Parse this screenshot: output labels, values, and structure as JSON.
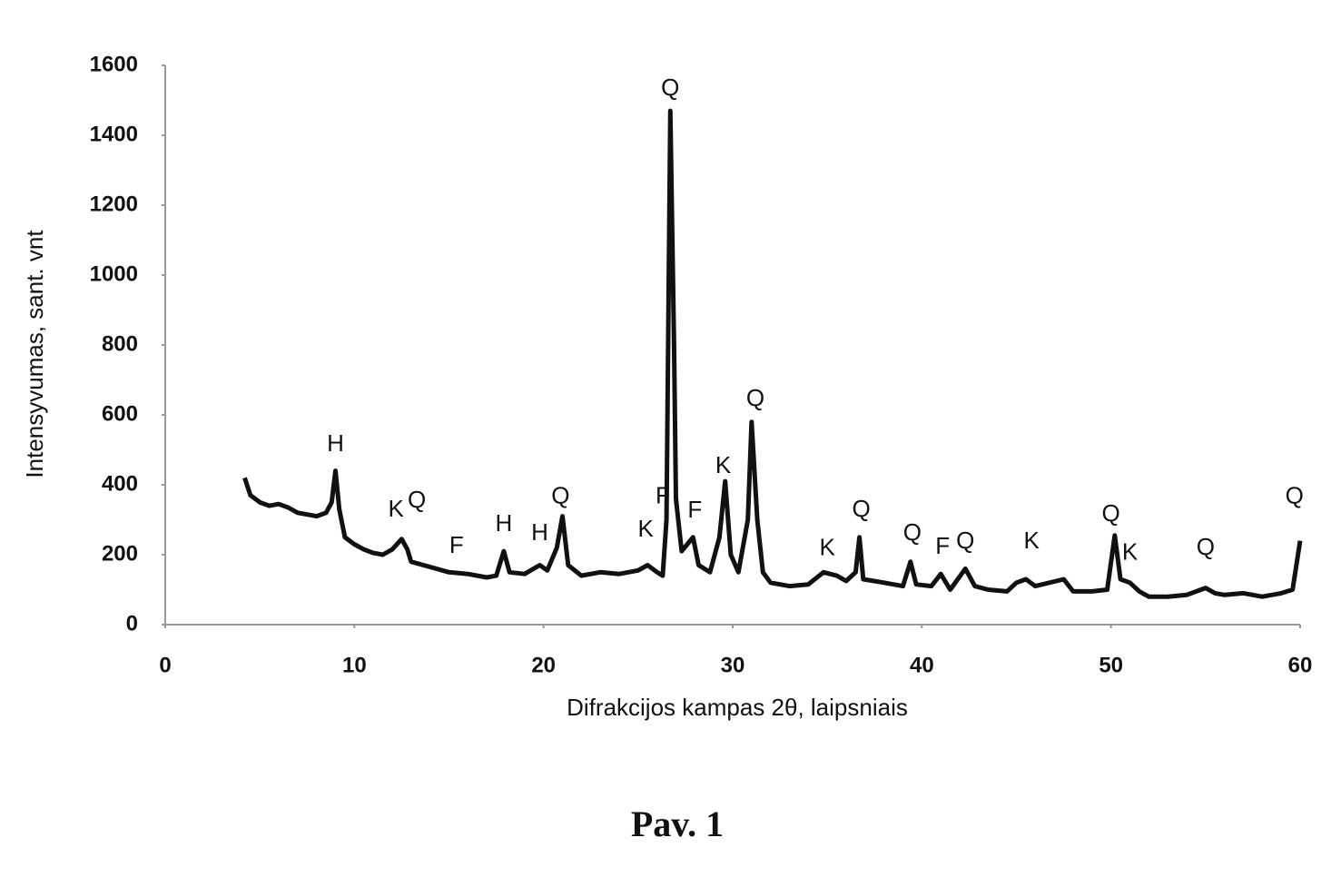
{
  "chart_data": {
    "type": "line",
    "x_label": "Difrakcijos kampas 2θ, laipsniais",
    "y_label": "Intensyvumas, sant. vnt",
    "color": "#111111",
    "xlim": [
      0,
      60
    ],
    "xticks": [
      0,
      10,
      20,
      30,
      40,
      50,
      60
    ],
    "ylim": [
      0,
      1600
    ],
    "yticks": [
      0,
      200,
      400,
      600,
      800,
      1000,
      1200,
      1400,
      1600
    ],
    "grid": false,
    "x": [
      4.2,
      4.5,
      5,
      5.5,
      6,
      6.5,
      7,
      7.5,
      8,
      8.5,
      8.8,
      9.0,
      9.2,
      9.5,
      10,
      10.5,
      11,
      11.5,
      12,
      12.5,
      12.8,
      13,
      14,
      15,
      16,
      17,
      17.5,
      17.9,
      18.2,
      19,
      19.8,
      20.2,
      20.7,
      21,
      21.3,
      22,
      23,
      24,
      25,
      25.5,
      26,
      26.3,
      26.5,
      26.7,
      26.9,
      27.0,
      27.3,
      27.6,
      27.9,
      28.2,
      28.8,
      29.3,
      29.6,
      29.9,
      30.3,
      30.8,
      31.0,
      31.3,
      31.6,
      32,
      33,
      34,
      34.8,
      35.5,
      36,
      36.5,
      36.7,
      36.9,
      38,
      39,
      39.4,
      39.7,
      40.5,
      41,
      41.5,
      42.3,
      42.8,
      43.5,
      44.5,
      45,
      45.5,
      46,
      47.5,
      48,
      49,
      49.8,
      50.2,
      50.5,
      51,
      51.5,
      52,
      53,
      54,
      55,
      55.5,
      56,
      57,
      58,
      59,
      59.6,
      60
    ],
    "values": [
      420,
      370,
      350,
      340,
      345,
      335,
      320,
      315,
      310,
      320,
      350,
      440,
      330,
      250,
      230,
      215,
      205,
      200,
      215,
      245,
      215,
      180,
      165,
      150,
      145,
      135,
      140,
      210,
      150,
      145,
      170,
      155,
      220,
      310,
      170,
      140,
      150,
      145,
      155,
      170,
      150,
      140,
      300,
      1470,
      800,
      360,
      210,
      230,
      250,
      170,
      150,
      250,
      410,
      200,
      150,
      300,
      580,
      300,
      150,
      120,
      110,
      115,
      150,
      140,
      125,
      150,
      250,
      130,
      120,
      110,
      180,
      115,
      110,
      145,
      100,
      160,
      110,
      100,
      95,
      120,
      130,
      110,
      130,
      95,
      95,
      100,
      255,
      130,
      120,
      95,
      80,
      80,
      85,
      105,
      90,
      85,
      90,
      80,
      90,
      100,
      240
    ],
    "annotations": [
      {
        "text": "H",
        "x": 9.0,
        "y": 514
      },
      {
        "text": "K",
        "x": 12.2,
        "y": 327
      },
      {
        "text": "Q",
        "x": 13.3,
        "y": 353
      },
      {
        "text": "F",
        "x": 15.4,
        "y": 223
      },
      {
        "text": "H",
        "x": 17.9,
        "y": 286
      },
      {
        "text": "H",
        "x": 19.8,
        "y": 260
      },
      {
        "text": "Q",
        "x": 20.9,
        "y": 364
      },
      {
        "text": "K",
        "x": 25.4,
        "y": 270
      },
      {
        "text": "F",
        "x": 26.3,
        "y": 364
      },
      {
        "text": "Q",
        "x": 26.7,
        "y": 1532
      },
      {
        "text": "F",
        "x": 28.0,
        "y": 325
      },
      {
        "text": "K",
        "x": 29.5,
        "y": 452
      },
      {
        "text": "Q",
        "x": 31.2,
        "y": 644
      },
      {
        "text": "K",
        "x": 35.0,
        "y": 216
      },
      {
        "text": "Q",
        "x": 36.8,
        "y": 327
      },
      {
        "text": "Q",
        "x": 39.5,
        "y": 260
      },
      {
        "text": "F",
        "x": 41.1,
        "y": 221
      },
      {
        "text": "Q",
        "x": 42.3,
        "y": 236
      },
      {
        "text": "K",
        "x": 45.8,
        "y": 236
      },
      {
        "text": "Q",
        "x": 50.0,
        "y": 314
      },
      {
        "text": "K",
        "x": 51.0,
        "y": 203
      },
      {
        "text": "Q",
        "x": 55.0,
        "y": 218
      },
      {
        "text": "Q",
        "x": 59.7,
        "y": 364
      }
    ]
  },
  "caption": "Pav. 1"
}
